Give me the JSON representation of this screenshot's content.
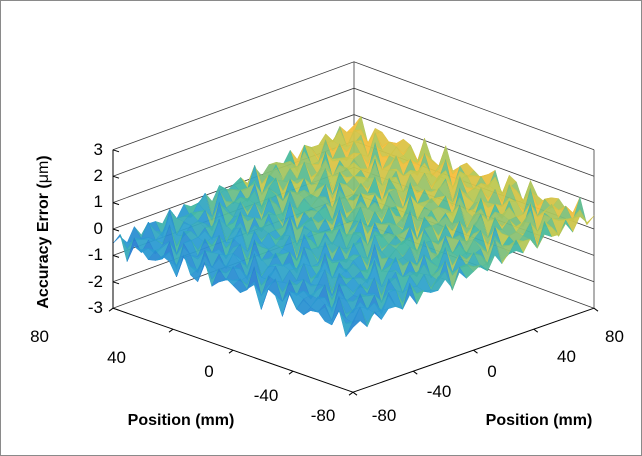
{
  "chart_data": {
    "type": "surface",
    "title": "",
    "zlabel": "Accuracy Error (",
    "zlabel_unit": "μm",
    "zlabel_close": ")",
    "xlabel": "Position (mm)",
    "ylabel": "Position (mm)",
    "zlim": [
      -3,
      3
    ],
    "zticks": [
      "3",
      "2",
      "1",
      "0",
      "-1",
      "-2",
      "-3"
    ],
    "xlim": [
      -80,
      80
    ],
    "ylim": [
      -80,
      80
    ],
    "xticks_left": [
      "80",
      "40",
      "0",
      "-40",
      "-80"
    ],
    "yticks_right": [
      "-80",
      "-40",
      "0",
      "40",
      "80"
    ],
    "grid": true,
    "colormap": "parula",
    "surface_range_um": [
      -1.0,
      0.8
    ],
    "colors": {
      "low": "#2a8fd8",
      "mid": "#36b7a8",
      "high": "#f0c23a",
      "peak": "#d98a6a"
    }
  }
}
